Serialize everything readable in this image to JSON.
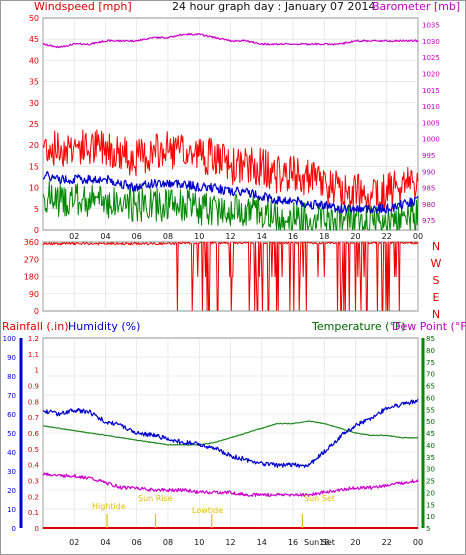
{
  "header": {
    "left_label": "Windspeed [mph]",
    "center_label": "24 hour graph day : January 07 2014",
    "right_label": "Barometer [mb]"
  },
  "x_ticks": [
    "02",
    "04",
    "06",
    "08",
    "10",
    "12",
    "14",
    "16",
    "18",
    "20",
    "22",
    "00"
  ],
  "wind_panel": {
    "y_left_ticks": [
      "0",
      "5",
      "10",
      "15",
      "20",
      "25",
      "30",
      "35",
      "40",
      "45",
      "50"
    ],
    "y_right_ticks": [
      "975",
      "980",
      "985",
      "990",
      "995",
      "1000",
      "1005",
      "1010",
      "1015",
      "1020",
      "1025",
      "1030",
      "1035"
    ]
  },
  "dir_panel": {
    "y_left_ticks": [
      "0",
      "90",
      "180",
      "270",
      "360"
    ],
    "compass_labels": [
      "N",
      "W",
      "S",
      "E",
      "N"
    ]
  },
  "bottom_panel": {
    "rain_label": "Rainfall (.in)",
    "humidity_label": "Humidity (%)",
    "temp_label": "Temperature (°F)",
    "dew_label": "Dew Point (°F)",
    "hum_ticks": [
      "0",
      "10",
      "20",
      "30",
      "40",
      "50",
      "60",
      "70",
      "80",
      "90",
      "100"
    ],
    "rain_ticks": [
      "0",
      "0.1",
      "0.2",
      "0.3",
      "0.4",
      "0.5",
      "0.6",
      "0.7",
      "0.8",
      "0.9",
      "1",
      "1.1",
      "1.2"
    ],
    "temp_ticks": [
      "5",
      "10",
      "15",
      "20",
      "25",
      "30",
      "35",
      "40",
      "45",
      "50",
      "55",
      "60",
      "65",
      "70",
      "75",
      "80",
      "85"
    ],
    "annotations": {
      "high_tide": "Hightide",
      "sun_rise": "Sun Rise",
      "low_tide": "Lowtide",
      "sun_set": "Sun Set",
      "sun_hours_axis": "Sun Set"
    }
  },
  "colors": {
    "wind_gust": "#ff0000",
    "wind_avg": "#0000cc",
    "wind_speed": "#008800",
    "barometer": "#cc00cc",
    "direction": "#ee0000",
    "humidity": "#0000cc",
    "temperature": "#228822",
    "dew_point": "#cc00cc",
    "rainfall": "#dd0000",
    "tide_sun": "#e0c000"
  },
  "chart_data": [
    {
      "type": "line",
      "title": "24 hour graph day : January 07 2014",
      "xlabel": "",
      "x_hours": [
        0,
        1,
        2,
        3,
        4,
        5,
        6,
        7,
        8,
        9,
        10,
        11,
        12,
        13,
        14,
        15,
        16,
        17,
        18,
        19,
        20,
        21,
        22,
        23,
        24
      ],
      "ylabel": "Windspeed [mph]",
      "ylim": [
        0,
        50
      ],
      "y2label": "Barometer [mb]",
      "y2lim": [
        972,
        1037
      ],
      "series": [
        {
          "name": "gust",
          "axis": "left",
          "values": [
            20,
            19,
            20,
            19,
            20,
            18,
            17,
            18,
            19,
            18,
            18,
            17,
            15,
            15,
            15,
            13,
            13,
            12,
            11,
            9,
            9,
            9,
            9,
            10,
            12
          ]
        },
        {
          "name": "average",
          "axis": "left",
          "values": [
            13,
            12,
            12,
            12,
            12,
            11,
            10,
            11,
            11,
            11,
            10,
            10,
            9,
            9,
            8,
            7,
            7,
            6,
            6,
            5,
            5,
            5,
            5,
            6,
            7
          ]
        },
        {
          "name": "speed",
          "axis": "left",
          "values": [
            8,
            7,
            7,
            7,
            7,
            6,
            6,
            6,
            6,
            6,
            5,
            5,
            5,
            5,
            4,
            3,
            3,
            3,
            3,
            2,
            2,
            2,
            2,
            3,
            4
          ]
        },
        {
          "name": "barometer",
          "axis": "right",
          "values": [
            1029,
            1028,
            1029,
            1029,
            1030,
            1030,
            1030,
            1031,
            1031,
            1032,
            1032,
            1031,
            1030,
            1030,
            1029,
            1029,
            1029,
            1029,
            1029,
            1029,
            1030,
            1030,
            1030,
            1030,
            1030
          ]
        }
      ]
    },
    {
      "type": "line",
      "title": "Wind direction",
      "ylabel": "",
      "ylim": [
        0,
        360
      ],
      "x_hours": [
        0,
        1,
        2,
        3,
        4,
        5,
        6,
        7,
        8,
        9,
        10,
        11,
        12,
        13,
        14,
        15,
        16,
        17,
        18,
        19,
        20,
        21,
        22,
        23,
        24
      ],
      "series": [
        {
          "name": "direction",
          "values": [
            355,
            350,
            355,
            352,
            355,
            358,
            355,
            0,
            355,
            10,
            355,
            5,
            350,
            0,
            355,
            5,
            360,
            0,
            355,
            350,
            355,
            0,
            355,
            355,
            355
          ]
        }
      ]
    },
    {
      "type": "line",
      "title": "",
      "x_hours": [
        0,
        1,
        2,
        3,
        4,
        5,
        6,
        7,
        8,
        9,
        10,
        11,
        12,
        13,
        14,
        15,
        16,
        17,
        18,
        19,
        20,
        21,
        22,
        23,
        24
      ],
      "ylabel": "Humidity (%)",
      "ylim": [
        0,
        100
      ],
      "y2label": "Temperature (°F)",
      "y2lim": [
        5,
        85
      ],
      "y3label": "Rainfall (.in)",
      "y3lim": [
        0,
        1.2
      ],
      "series": [
        {
          "name": "humidity",
          "axis": "left",
          "values": [
            62,
            60,
            62,
            61,
            56,
            54,
            50,
            49,
            47,
            45,
            44,
            42,
            38,
            36,
            34,
            33,
            33,
            33,
            40,
            48,
            54,
            58,
            63,
            65,
            67
          ]
        },
        {
          "name": "temperature",
          "axis": "right",
          "values": [
            48,
            47,
            46,
            45,
            44,
            43,
            42,
            41,
            40,
            40,
            40,
            41,
            43,
            45,
            47,
            49,
            49,
            50,
            49,
            47,
            45,
            44,
            44,
            43,
            43
          ]
        },
        {
          "name": "dew_point",
          "axis": "right",
          "values": [
            28,
            27,
            27,
            26,
            24,
            22,
            22,
            21,
            21,
            21,
            20,
            20,
            20,
            19,
            19,
            19,
            19,
            19,
            20,
            21,
            22,
            22,
            23,
            24,
            25
          ]
        },
        {
          "name": "rainfall",
          "axis": "rain",
          "values": [
            0,
            0,
            0,
            0,
            0,
            0,
            0,
            0,
            0,
            0,
            0,
            0,
            0,
            0,
            0,
            0,
            0,
            0,
            0,
            0,
            0,
            0,
            0,
            0,
            0
          ]
        }
      ]
    }
  ]
}
